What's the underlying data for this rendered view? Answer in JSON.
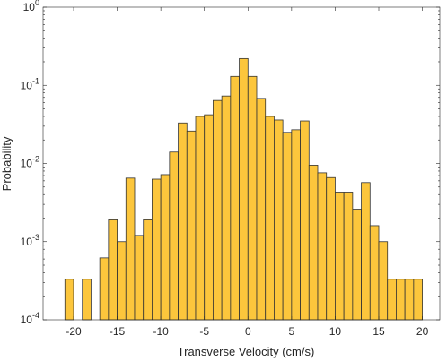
{
  "chart_data": {
    "type": "histogram",
    "xlabel": "Transverse Velocity (cm/s)",
    "ylabel": "Probability",
    "bins": [
      -21,
      -20,
      -19,
      -18,
      -17,
      -16,
      -15,
      -14,
      -13,
      -12,
      -11,
      -10,
      -9,
      -8,
      -7,
      -6,
      -5,
      -4,
      -3,
      -2,
      -1,
      0,
      1,
      2,
      3,
      4,
      5,
      6,
      7,
      8,
      9,
      10,
      11,
      12,
      13,
      14,
      15,
      16,
      17,
      18,
      19,
      20
    ],
    "values": [
      0.00033,
      0,
      0.00033,
      0,
      0.00062,
      0.0019,
      0.001,
      0.0065,
      0.0012,
      0.0019,
      0.0063,
      0.0072,
      0.014,
      0.033,
      0.026,
      0.04,
      0.042,
      0.064,
      0.073,
      0.13,
      0.22,
      0.13,
      0.068,
      0.04,
      0.036,
      0.025,
      0.027,
      0.035,
      0.0095,
      0.0076,
      0.0066,
      0.0043,
      0.0043,
      0.0026,
      0.0057,
      0.0016,
      0.001,
      0.00033,
      0.00033,
      0.00033,
      0.00033
    ],
    "color": "#fcc63c",
    "edgecolor": "#333333",
    "xlim": [
      -23.5,
      22
    ],
    "xticks": [
      -20,
      -15,
      -10,
      -5,
      0,
      5,
      10,
      15,
      20
    ],
    "ylim": [
      0.0001,
      1
    ],
    "ylog": true,
    "yticks": [
      {
        "value": 0.0001,
        "label": "10",
        "exponent": "-4"
      },
      {
        "value": 0.001,
        "label": "10",
        "exponent": "-3"
      },
      {
        "value": 0.01,
        "label": "10",
        "exponent": "-2"
      },
      {
        "value": 0.1,
        "label": "10",
        "exponent": "-1"
      },
      {
        "value": 1,
        "label": "10",
        "exponent": "0"
      }
    ]
  }
}
